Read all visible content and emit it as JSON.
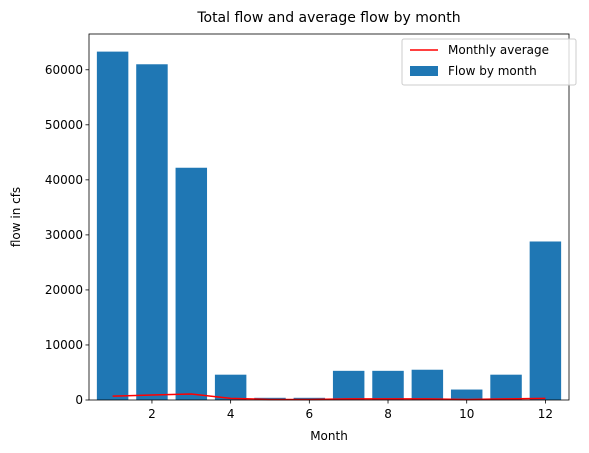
{
  "chart_data": {
    "type": "bar",
    "title": "Total flow and average flow by month",
    "xlabel": "Month",
    "ylabel": "flow in cfs",
    "xlim": [
      0.4,
      12.6
    ],
    "ylim": [
      0,
      66500
    ],
    "xticks": [
      "2",
      "4",
      "6",
      "8",
      "10",
      "12"
    ],
    "yticks": [
      "0",
      "10000",
      "20000",
      "30000",
      "40000",
      "50000",
      "60000"
    ],
    "grid": false,
    "legend_position": "top-right",
    "series": [
      {
        "name": "Flow by month",
        "kind": "bar",
        "color": "#1f77b4",
        "x": [
          1,
          2,
          3,
          4,
          5,
          6,
          7,
          8,
          9,
          10,
          11,
          12
        ],
        "values": [
          63300,
          61000,
          42200,
          4600,
          400,
          400,
          5300,
          5300,
          5500,
          1900,
          4600,
          28800
        ]
      },
      {
        "name": "Monthly average",
        "kind": "line",
        "color": "#ff0000",
        "x": [
          1,
          2,
          3,
          4,
          5,
          6,
          7,
          8,
          9,
          10,
          11,
          12
        ],
        "values": [
          700,
          900,
          1100,
          300,
          100,
          100,
          200,
          200,
          200,
          100,
          200,
          300
        ]
      }
    ]
  }
}
